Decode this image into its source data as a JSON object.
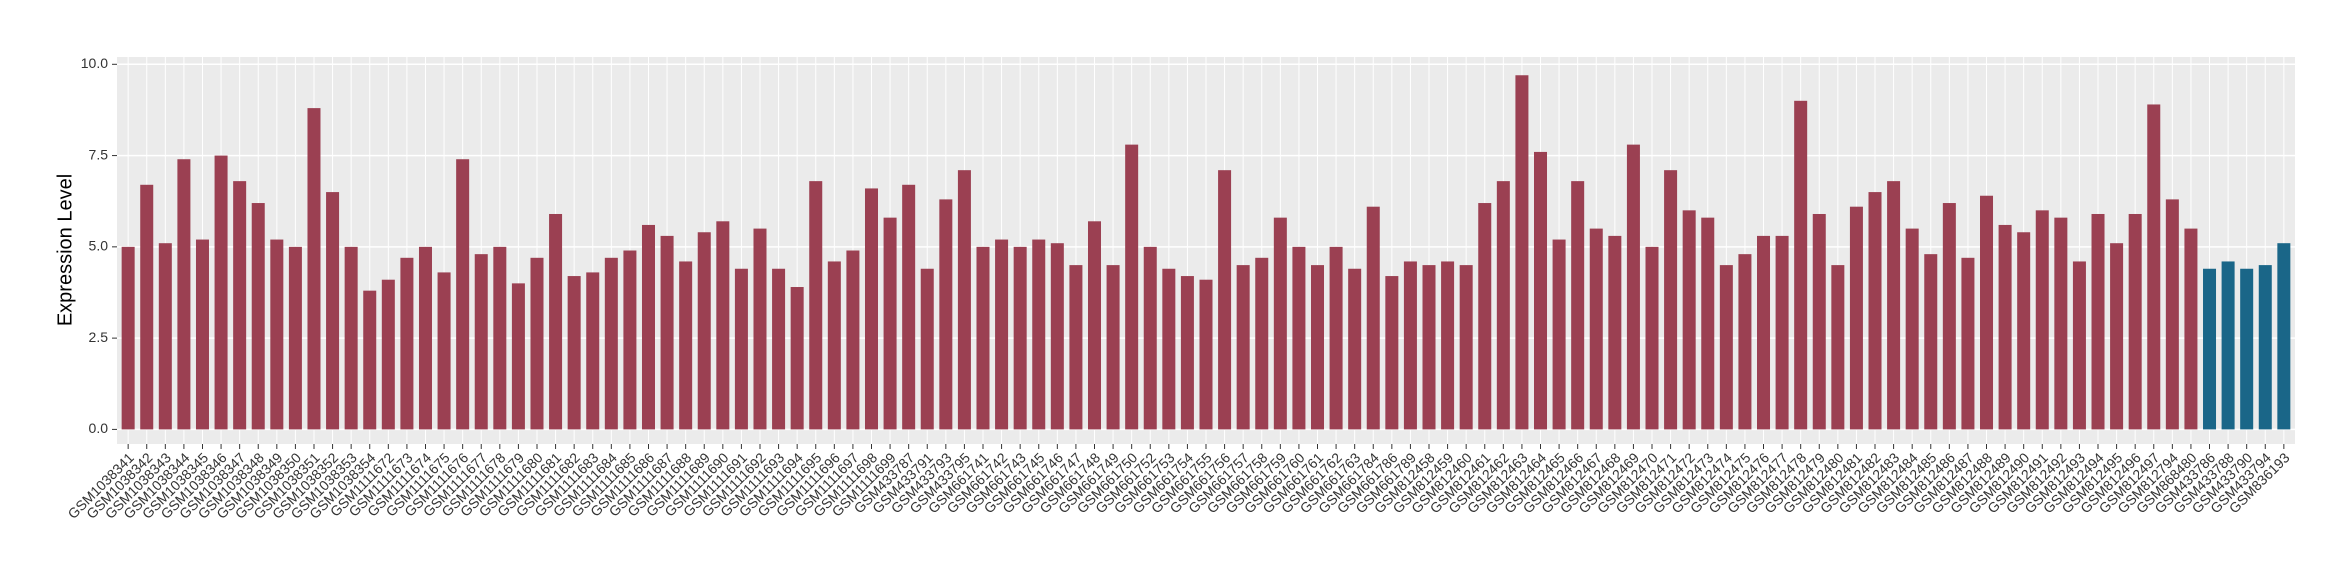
{
  "chart_data": {
    "type": "bar",
    "y_label": "Expression Level",
    "categories": [
      "GSM1038341",
      "GSM1038342",
      "GSM1038343",
      "GSM1038344",
      "GSM1038345",
      "GSM1038346",
      "GSM1038347",
      "GSM1038348",
      "GSM1038349",
      "GSM1038350",
      "GSM1038351",
      "GSM1038352",
      "GSM1038353",
      "GSM1038354",
      "GSM1111672",
      "GSM1111673",
      "GSM1111674",
      "GSM1111675",
      "GSM1111676",
      "GSM1111677",
      "GSM1111678",
      "GSM1111679",
      "GSM1111680",
      "GSM1111681",
      "GSM1111682",
      "GSM1111683",
      "GSM1111684",
      "GSM1111685",
      "GSM1111686",
      "GSM1111687",
      "GSM1111688",
      "GSM1111689",
      "GSM1111690",
      "GSM1111691",
      "GSM1111692",
      "GSM1111693",
      "GSM1111694",
      "GSM1111695",
      "GSM1111696",
      "GSM1111697",
      "GSM1111698",
      "GSM1111699",
      "GSM433787",
      "GSM433791",
      "GSM433793",
      "GSM433795",
      "GSM661741",
      "GSM661742",
      "GSM661743",
      "GSM661745",
      "GSM661746",
      "GSM661747",
      "GSM661748",
      "GSM661749",
      "GSM661750",
      "GSM661752",
      "GSM661753",
      "GSM661754",
      "GSM661755",
      "GSM661756",
      "GSM661757",
      "GSM661758",
      "GSM661759",
      "GSM661760",
      "GSM661761",
      "GSM661762",
      "GSM661763",
      "GSM661784",
      "GSM661786",
      "GSM661789",
      "GSM812458",
      "GSM812459",
      "GSM812460",
      "GSM812461",
      "GSM812462",
      "GSM812463",
      "GSM812464",
      "GSM812465",
      "GSM812466",
      "GSM812467",
      "GSM812468",
      "GSM812469",
      "GSM812470",
      "GSM812471",
      "GSM812472",
      "GSM812473",
      "GSM812474",
      "GSM812475",
      "GSM812476",
      "GSM812477",
      "GSM812478",
      "GSM812479",
      "GSM812480",
      "GSM812481",
      "GSM812482",
      "GSM812483",
      "GSM812484",
      "GSM812485",
      "GSM812486",
      "GSM812487",
      "GSM812488",
      "GSM812489",
      "GSM812490",
      "GSM812491",
      "GSM812492",
      "GSM812493",
      "GSM812494",
      "GSM812495",
      "GSM812496",
      "GSM812497",
      "GSM812794",
      "GSM868480",
      "GSM433786",
      "GSM433788",
      "GSM433790",
      "GSM433794",
      "GSM836193"
    ],
    "values": [
      5.0,
      6.7,
      5.1,
      7.4,
      5.2,
      7.5,
      6.8,
      6.2,
      5.2,
      5.0,
      8.8,
      6.5,
      5.0,
      3.8,
      4.1,
      4.7,
      5.0,
      4.3,
      7.4,
      4.8,
      5.0,
      4.0,
      4.7,
      5.9,
      4.2,
      4.3,
      4.7,
      4.9,
      5.6,
      5.3,
      4.6,
      5.4,
      5.7,
      4.4,
      5.5,
      4.4,
      3.9,
      6.8,
      4.6,
      4.9,
      6.6,
      5.8,
      6.7,
      4.4,
      6.3,
      7.1,
      5.0,
      5.2,
      5.0,
      5.2,
      5.1,
      4.5,
      5.7,
      4.5,
      7.8,
      5.0,
      4.4,
      4.2,
      4.1,
      7.1,
      4.5,
      4.7,
      5.8,
      5.0,
      4.5,
      5.0,
      4.4,
      6.1,
      4.2,
      4.6,
      4.5,
      4.6,
      4.5,
      6.2,
      6.8,
      9.7,
      7.6,
      5.2,
      6.8,
      5.5,
      5.3,
      7.8,
      5.0,
      7.1,
      6.0,
      5.8,
      4.5,
      4.8,
      5.3,
      5.3,
      9.0,
      5.9,
      4.5,
      6.1,
      6.5,
      6.8,
      5.5,
      4.8,
      6.2,
      4.7,
      6.4,
      5.6,
      5.4,
      6.0,
      5.8,
      4.6,
      5.9,
      5.1,
      5.9,
      8.9,
      6.3,
      5.5,
      4.4,
      4.6,
      4.4,
      4.5,
      5.1
    ],
    "colors": [
      "#9b4052",
      "#9b4052",
      "#9b4052",
      "#9b4052",
      "#9b4052",
      "#9b4052",
      "#9b4052",
      "#9b4052",
      "#9b4052",
      "#9b4052",
      "#9b4052",
      "#9b4052",
      "#9b4052",
      "#9b4052",
      "#9b4052",
      "#9b4052",
      "#9b4052",
      "#9b4052",
      "#9b4052",
      "#9b4052",
      "#9b4052",
      "#9b4052",
      "#9b4052",
      "#9b4052",
      "#9b4052",
      "#9b4052",
      "#9b4052",
      "#9b4052",
      "#9b4052",
      "#9b4052",
      "#9b4052",
      "#9b4052",
      "#9b4052",
      "#9b4052",
      "#9b4052",
      "#9b4052",
      "#9b4052",
      "#9b4052",
      "#9b4052",
      "#9b4052",
      "#9b4052",
      "#9b4052",
      "#9b4052",
      "#9b4052",
      "#9b4052",
      "#9b4052",
      "#9b4052",
      "#9b4052",
      "#9b4052",
      "#9b4052",
      "#9b4052",
      "#9b4052",
      "#9b4052",
      "#9b4052",
      "#9b4052",
      "#9b4052",
      "#9b4052",
      "#9b4052",
      "#9b4052",
      "#9b4052",
      "#9b4052",
      "#9b4052",
      "#9b4052",
      "#9b4052",
      "#9b4052",
      "#9b4052",
      "#9b4052",
      "#9b4052",
      "#9b4052",
      "#9b4052",
      "#9b4052",
      "#9b4052",
      "#9b4052",
      "#9b4052",
      "#9b4052",
      "#9b4052",
      "#9b4052",
      "#9b4052",
      "#9b4052",
      "#9b4052",
      "#9b4052",
      "#9b4052",
      "#9b4052",
      "#9b4052",
      "#9b4052",
      "#9b4052",
      "#9b4052",
      "#9b4052",
      "#9b4052",
      "#9b4052",
      "#9b4052",
      "#9b4052",
      "#9b4052",
      "#9b4052",
      "#9b4052",
      "#9b4052",
      "#9b4052",
      "#9b4052",
      "#9b4052",
      "#9b4052",
      "#9b4052",
      "#9b4052",
      "#9b4052",
      "#9b4052",
      "#9b4052",
      "#9b4052",
      "#9b4052",
      "#9b4052",
      "#9b4052",
      "#9b4052",
      "#9b4052",
      "#9b4052",
      "#1a6688",
      "#1a6688",
      "#1a6688",
      "#1a6688",
      "#1a6688"
    ],
    "ylim": [
      -0.4,
      10.2
    ],
    "yticks": [
      {
        "value": 0,
        "label": "0.0"
      },
      2.5,
      {
        "value": 5,
        "label": "5.0"
      },
      7.5,
      {
        "value": 10,
        "label": "10.0"
      }
    ],
    "grid": true
  }
}
